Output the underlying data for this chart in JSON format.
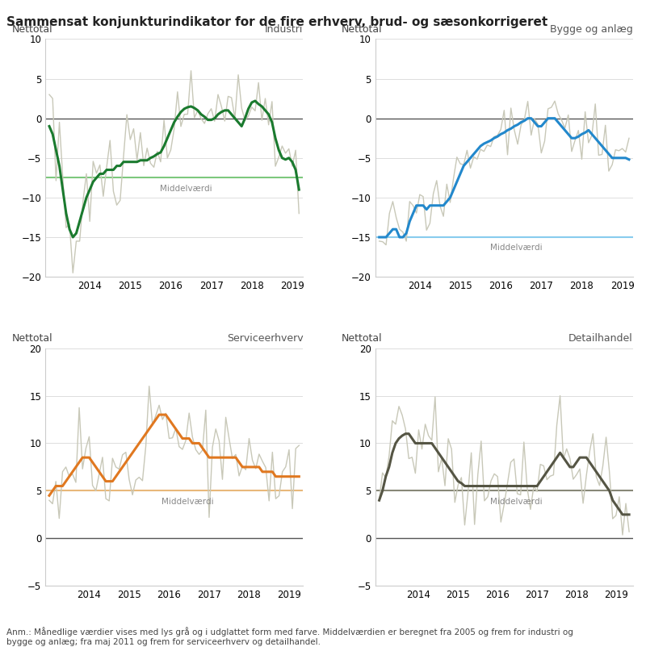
{
  "title": "Sammensat konjunkturindikator for de fire erhverv, brud- og sæsonkorrigeret",
  "footnote": "Anm.: Månedlige værdier vises med lys grå og i udglattet form med farve. Middelværdien er beregnet fra 2005 og frem for industri og\nbygge og anlæg; fra maj 2011 og frem for serviceerhverv og detailhandel.",
  "panels": [
    {
      "title": "Industri",
      "ylabel": "Nettotal",
      "ylim": [
        -20,
        10
      ],
      "yticks": [
        -20,
        -15,
        -10,
        -5,
        0,
        5,
        10
      ],
      "mean_value": -7.5,
      "smooth_color": "#1a7a2e",
      "mean_color": "#7dc87d"
    },
    {
      "title": "Bygge og anlæg",
      "ylabel": "Nettotal",
      "ylim": [
        -20,
        10
      ],
      "yticks": [
        -20,
        -15,
        -10,
        -5,
        0,
        5,
        10
      ],
      "mean_value": -15.0,
      "smooth_color": "#2288cc",
      "mean_color": "#88ccee"
    },
    {
      "title": "Serviceerhverv",
      "ylabel": "Nettotal",
      "ylim": [
        -5,
        20
      ],
      "yticks": [
        -5,
        0,
        5,
        10,
        15,
        20
      ],
      "mean_value": 5.0,
      "smooth_color": "#e07820",
      "mean_color": "#e8b87a"
    },
    {
      "title": "Detailhandel",
      "ylabel": "Nettotal",
      "ylim": [
        -5,
        20
      ],
      "yticks": [
        -5,
        0,
        5,
        10,
        15,
        20
      ],
      "mean_value": 5.0,
      "smooth_color": "#555544",
      "mean_color": "#888877"
    }
  ],
  "raw_color": "#c8c8b8",
  "zero_line_color": "#555555",
  "grid_color": "#dddddd",
  "background_color": "#ffffff",
  "title_fontsize": 11,
  "label_fontsize": 9,
  "tick_fontsize": 8.5
}
